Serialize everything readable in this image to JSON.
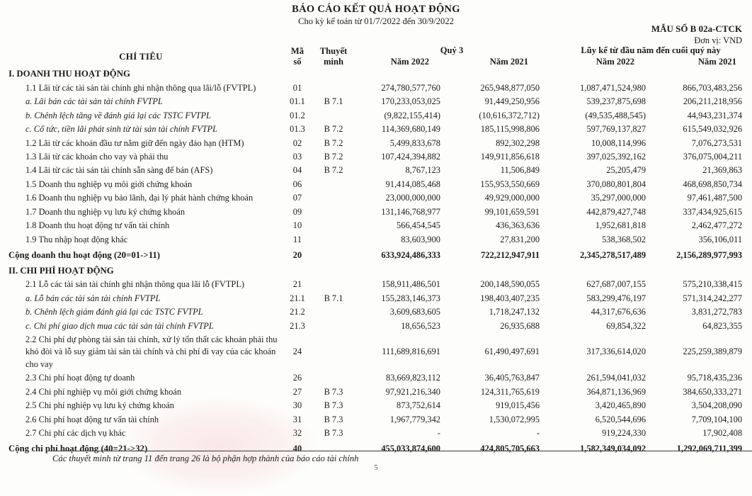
{
  "page": {
    "title": "BÁO CÁO KẾT QUẢ HOẠT ĐỘNG",
    "subtitle": "Cho kỳ kế toán từ 01/7/2022 đến 30/9/2022",
    "form_no": "MẪU SỐ B 02a-CTCK",
    "unit": "Đơn vị: VND",
    "footnote": "Các thuyết minh từ trang 11 đến trang 26 là bộ phận hợp thành của báo cáo tài chính",
    "page_number": "5"
  },
  "table": {
    "headers": {
      "item": "CHỈ TIÊU",
      "code_line1": "Mã",
      "code_line2": "số",
      "note_line1": "Thuyết",
      "note_line2": "minh",
      "quarter_group": "Quý 3",
      "ytd_group": "Lũy kế từ đầu năm đến cuối quý này",
      "q_year_2022": "Năm 2022",
      "q_year_2021": "Năm 2021",
      "ytd_year_2022": "Năm 2022",
      "ytd_year_2021": "Năm 2021"
    },
    "rows": [
      {
        "style": "section",
        "label": "I. DOANH THU HOẠT ĐỘNG",
        "code": "",
        "note": "",
        "values": [
          "",
          "",
          "",
          ""
        ]
      },
      {
        "style": "item",
        "label": "1.1 Lãi từ các tài sản tài chính ghi nhận thông qua lãi/lỗ (FVTPL)",
        "code": "01",
        "note": "",
        "values": [
          "274,780,577,760",
          "265,948,877,050",
          "1,087,471,524,980",
          "866,703,483,256"
        ]
      },
      {
        "style": "sub",
        "label": "a. Lãi bán các tài sản tài chính FVTPL",
        "code": "01.1",
        "note": "B 7.1",
        "values": [
          "170,233,053,025",
          "91,449,250,956",
          "539,237,875,698",
          "206,211,218,956"
        ]
      },
      {
        "style": "sub",
        "label": "b. Chênh lệch tăng về đánh giá lại các TSTC FVTPL",
        "code": "01.2",
        "note": "",
        "values": [
          "(9,822,155,414)",
          "(10,616,372,712)",
          "(49,535,488,545)",
          "44,943,231,374"
        ]
      },
      {
        "style": "sub",
        "label": "c. Cổ tức, tiền lãi phát sinh từ tài sản tài chính FVTPL",
        "code": "01.3",
        "note": "B 7.2",
        "values": [
          "114,369,680,149",
          "185,115,998,806",
          "597,769,137,827",
          "615,549,032,926"
        ]
      },
      {
        "style": "item",
        "label": "1.2 Lãi từ các khoản đầu tư nắm giữ đến ngày đáo hạn (HTM)",
        "code": "02",
        "note": "B 7.2",
        "values": [
          "5,499,833,678",
          "892,302,298",
          "10,008,114,996",
          "7,076,273,531"
        ]
      },
      {
        "style": "item",
        "label": "1.3 Lãi từ các khoản cho vay và phải thu",
        "code": "03",
        "note": "B 7.2",
        "values": [
          "107,424,394,882",
          "149,911,856,618",
          "397,025,392,162",
          "376,075,004,211"
        ]
      },
      {
        "style": "item",
        "label": "1.4 Lãi từ các tài sản tài chính sẵn sàng để bán (AFS)",
        "code": "04",
        "note": "B 7.2",
        "values": [
          "8,767,123",
          "11,506,849",
          "25,205,479",
          "21,369,863"
        ]
      },
      {
        "style": "item",
        "label": "1.5 Doanh thu nghiệp vụ môi giới chứng khoán",
        "code": "06",
        "note": "",
        "values": [
          "91,414,085,468",
          "155,953,550,669",
          "370,080,801,804",
          "468,698,850,734"
        ]
      },
      {
        "style": "item",
        "label": "1.6 Doanh thu nghiệp vụ bảo lãnh, đại lý phát hành chứng khoán",
        "code": "07",
        "note": "",
        "values": [
          "23,000,000,000",
          "49,929,000,000",
          "35,297,000,000",
          "97,461,487,500"
        ]
      },
      {
        "style": "item",
        "label": "1.7 Doanh thu nghiệp vụ lưu ký chứng khoán",
        "code": "09",
        "note": "",
        "values": [
          "131,146,768,977",
          "99,101,659,591",
          "442,879,427,748",
          "337,434,925,615"
        ]
      },
      {
        "style": "item",
        "label": "1.8 Doanh thu hoạt động tư vấn tài chính",
        "code": "10",
        "note": "",
        "values": [
          "566,454,545",
          "436,363,636",
          "1,952,681,818",
          "2,462,477,272"
        ]
      },
      {
        "style": "item",
        "label": "1.9 Thu nhập hoạt động khác",
        "code": "11",
        "note": "",
        "values": [
          "83,603,900",
          "27,831,200",
          "538,368,502",
          "356,106,011"
        ]
      },
      {
        "style": "total",
        "label": "Cộng doanh thu hoạt động (20=01->11)",
        "code": "20",
        "note": "",
        "values": [
          "633,924,486,333",
          "722,212,947,911",
          "2,345,278,517,489",
          "2,156,289,977,993"
        ]
      },
      {
        "style": "section",
        "label": "II. CHI PHÍ HOẠT ĐỘNG",
        "code": "",
        "note": "",
        "values": [
          "",
          "",
          "",
          ""
        ]
      },
      {
        "style": "item",
        "label": "2.1 Lỗ các tài sản tài chính ghi nhận thông qua lãi lỗ (FVTPL)",
        "code": "21",
        "note": "",
        "values": [
          "158,911,486,501",
          "200,148,590,055",
          "627,687,007,155",
          "575,210,338,415"
        ]
      },
      {
        "style": "sub",
        "label": "a. Lỗ bán các tài sản tài chính FVTPL",
        "code": "21.1",
        "note": "B 7.1",
        "values": [
          "155,283,146,373",
          "198,403,407,235",
          "583,299,476,197",
          "571,314,242,277"
        ]
      },
      {
        "style": "sub",
        "label": "b. Chênh lệch giảm đánh giá lại các TSTC FVTPL",
        "code": "21.2",
        "note": "",
        "values": [
          "3,609,683,605",
          "1,718,247,132",
          "44,317,676,636",
          "3,831,272,783"
        ]
      },
      {
        "style": "sub",
        "label": "c. Chi phí giao dịch mua các tài sản tài chính FVTPL",
        "code": "21.3",
        "note": "",
        "values": [
          "18,656,523",
          "26,935,688",
          "69,854,322",
          "64,823,355"
        ]
      },
      {
        "style": "item",
        "label": "2.2 Chi phí dự phòng tài sản tài chính, xử lý tổn thất các khoản phải thu khó đòi và lỗ suy giảm tài sản tài chính và chi phí đi vay của các khoản cho vay",
        "code": "24",
        "note": "",
        "values": [
          "111,689,816,691",
          "61,490,497,691",
          "317,336,614,020",
          "225,259,389,879"
        ]
      },
      {
        "style": "item",
        "label": "2.3 Chi phí hoạt động tự doanh",
        "code": "26",
        "note": "",
        "values": [
          "83,669,823,112",
          "36,405,763,847",
          "261,594,041,032",
          "95,718,435,236"
        ]
      },
      {
        "style": "item",
        "label": "2.4 Chi phí nghiệp vụ môi giới chứng khoán",
        "code": "27",
        "note": "B 7.3",
        "values": [
          "97,921,216,340",
          "124,311,765,619",
          "364,871,136,969",
          "384,650,333,271"
        ]
      },
      {
        "style": "item",
        "label": "2.5 Chi phí nghiệp vụ lưu ký chứng khoán",
        "code": "30",
        "note": "B 7.3",
        "values": [
          "873,752,614",
          "919,015,456",
          "3,420,465,890",
          "3,504,208,090"
        ]
      },
      {
        "style": "item",
        "label": "2.6 Chi phí hoạt động tư vấn tài chính",
        "code": "31",
        "note": "B 7.3",
        "values": [
          "1,967,779,342",
          "1,530,072,995",
          "6,520,544,696",
          "7,709,104,100"
        ]
      },
      {
        "style": "item",
        "label": "2.7 Chi phí các dịch vụ khác",
        "code": "32",
        "note": "B 7.3",
        "values": [
          "-",
          "-",
          "919,224,330",
          "17,902,408"
        ]
      },
      {
        "style": "total",
        "label": "Cộng chi phí hoạt động (40=21->32)",
        "code": "40",
        "note": "",
        "values": [
          "455,033,874,600",
          "424,805,705,663",
          "1,582,349,034,092",
          "1,292,069,711,399"
        ]
      }
    ]
  }
}
